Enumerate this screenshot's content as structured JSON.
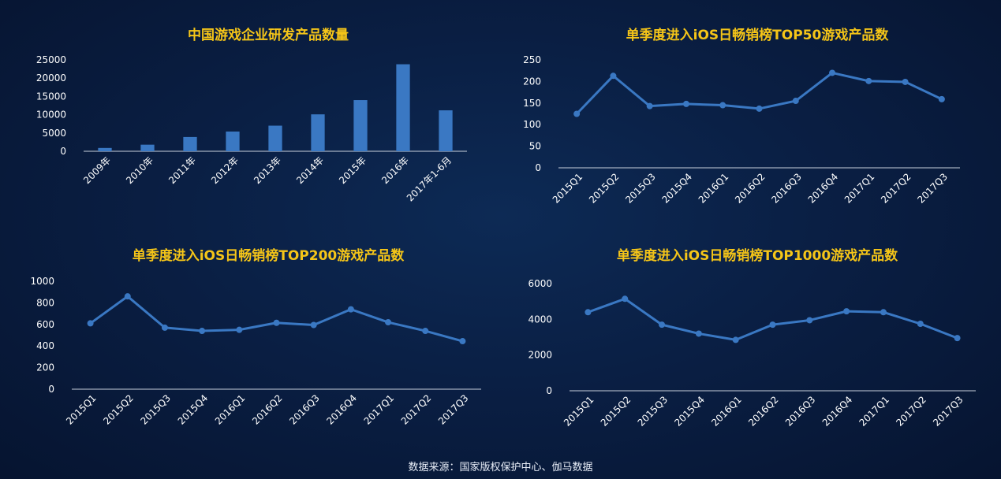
{
  "source_note": "数据来源：国家版权保护中心、伽马数据",
  "colors": {
    "series": "#3a78c3",
    "title": "#f5c518",
    "text": "#ffffff",
    "axis": "#c8d0dc"
  },
  "chart_data": [
    {
      "type": "bar",
      "title": "中国游戏企业研发产品数量",
      "categories": [
        "2009年",
        "2010年",
        "2011年",
        "2012年",
        "2013年",
        "2014年",
        "2015年",
        "2016年",
        "2017年1-6月"
      ],
      "values": [
        900,
        1800,
        3900,
        5400,
        7000,
        10100,
        14000,
        23800,
        11200
      ],
      "yticks": [
        0,
        5000,
        10000,
        15000,
        20000,
        25000
      ],
      "ylim": [
        0,
        25000
      ],
      "grid": false
    },
    {
      "type": "line",
      "title": "单季度进入iOS日畅销榜TOP50游戏产品数",
      "categories": [
        "2015Q1",
        "2015Q2",
        "2015Q3",
        "2015Q4",
        "2016Q1",
        "2016Q2",
        "2016Q3",
        "2016Q4",
        "2017Q1",
        "2017Q2",
        "2017Q3"
      ],
      "values": [
        125,
        213,
        143,
        148,
        145,
        137,
        155,
        220,
        201,
        199,
        159
      ],
      "yticks": [
        0,
        50,
        100,
        150,
        200,
        250
      ],
      "ylim": [
        0,
        250
      ],
      "grid": false
    },
    {
      "type": "line",
      "title": "单季度进入iOS日畅销榜TOP200游戏产品数",
      "categories": [
        "2015Q1",
        "2015Q2",
        "2015Q3",
        "2015Q4",
        "2016Q1",
        "2016Q2",
        "2016Q3",
        "2016Q4",
        "2017Q1",
        "2017Q2",
        "2017Q3"
      ],
      "values": [
        610,
        860,
        570,
        540,
        550,
        615,
        595,
        740,
        620,
        540,
        445
      ],
      "yticks": [
        0,
        200,
        400,
        600,
        800,
        1000
      ],
      "ylim": [
        0,
        1000
      ],
      "grid": false
    },
    {
      "type": "line",
      "title": "单季度进入iOS日畅销榜TOP1000游戏产品数",
      "categories": [
        "2015Q1",
        "2015Q2",
        "2015Q3",
        "2015Q4",
        "2016Q1",
        "2016Q2",
        "2016Q3",
        "2016Q4",
        "2017Q1",
        "2017Q2",
        "2017Q3"
      ],
      "values": [
        4400,
        5150,
        3700,
        3200,
        2850,
        3700,
        3950,
        4450,
        4400,
        3750,
        2950
      ],
      "yticks": [
        0,
        2000,
        4000,
        6000
      ],
      "ylim": [
        0,
        6000
      ],
      "grid": false
    }
  ]
}
